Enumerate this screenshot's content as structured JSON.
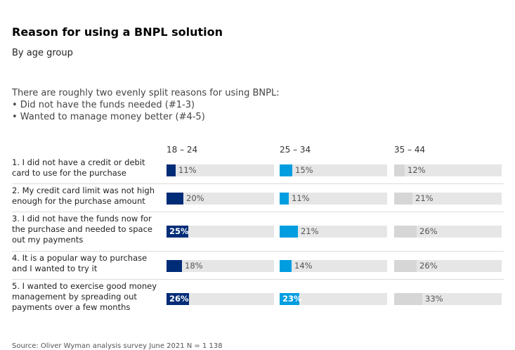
{
  "colors": {
    "series_0": "#002c77",
    "series_1": "#009de0",
    "series_2": "#d6d6d6",
    "track": "#e6e6e6"
  },
  "chart_data": {
    "type": "bar",
    "title": "Reason for using a BNPL solution",
    "subtitle": "By age group",
    "intro": [
      "There are roughly two evenly split reasons for using BNPL:",
      "• Did not have the funds needed (#1-3)",
      "• Wanted to manage money better (#4-5)"
    ],
    "categories": [
      "1. I did not have a credit or debit card to use for the purchase",
      "2. My credit card limit was not high enough for the purchase amount",
      "3. I did not have the funds now for the purchase and needed to space out my payments",
      "4. It is a popular way to purchase and I wanted to try it",
      "5. I wanted to exercise good money management by spreading out payments over a few months"
    ],
    "category_lines": [
      [
        "1. I did not have a credit or debit",
        "card to use for the purchase"
      ],
      [
        "2. My credit card limit was not high",
        "enough for the purchase amount"
      ],
      [
        "3. I did not have the funds now for",
        "the purchase and needed to space",
        "out my payments"
      ],
      [
        "4. It is a popular way to purchase",
        "and I wanted to try it"
      ],
      [
        "5. I wanted to exercise good money",
        "management by spreading out",
        "payments over a few months"
      ]
    ],
    "series": [
      {
        "name": "18 – 24",
        "values": [
          11,
          20,
          25,
          18,
          26
        ],
        "labels": [
          "11%",
          "20%",
          "25%",
          "18%",
          "26%"
        ],
        "highlight": [
          false,
          false,
          true,
          false,
          true
        ]
      },
      {
        "name": "25 – 34",
        "values": [
          15,
          11,
          21,
          14,
          23
        ],
        "labels": [
          "15%",
          "11%",
          "21%",
          "14%",
          "23%"
        ],
        "highlight": [
          false,
          false,
          false,
          false,
          true
        ]
      },
      {
        "name": "35 – 44",
        "values": [
          12,
          21,
          26,
          26,
          33
        ],
        "labels": [
          "12%",
          "21%",
          "26%",
          "26%",
          "33%"
        ],
        "highlight": [
          false,
          false,
          false,
          false,
          false
        ]
      }
    ],
    "xlim": [
      0,
      100
    ]
  },
  "source": "Source:    Oliver Wyman analysis survey June 2021 N = 1 138"
}
